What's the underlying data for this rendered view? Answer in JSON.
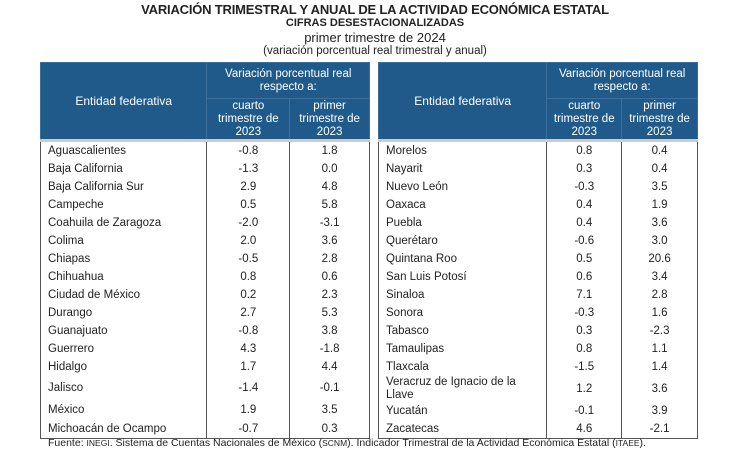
{
  "title": "VARIACIÓN TRIMESTRAL Y ANUAL DE LA ACTIVIDAD ECONÓMICA ESTATAL",
  "subtitle": "CIFRAS DESESTACIONALIZADAS",
  "period": "primer trimestre de 2024",
  "note": "(variación porcentual real trimestral y anual)",
  "headers": {
    "entity": "Entidad federativa",
    "group": "Variación porcentual real respecto a:",
    "col1": "cuarto trimestre de 2023",
    "col2": "primer trimestre de 2023"
  },
  "left_rows": [
    [
      "Aguascalientes",
      "-0.8",
      "1.8"
    ],
    [
      "Baja California",
      "-1.3",
      "0.0"
    ],
    [
      "Baja California Sur",
      "2.9",
      "4.8"
    ],
    [
      "Campeche",
      "0.5",
      "5.8"
    ],
    [
      "Coahuila de Zaragoza",
      "-2.0",
      "-3.1"
    ],
    [
      "Colima",
      "2.0",
      "3.6"
    ],
    [
      "Chiapas",
      "-0.5",
      "2.8"
    ],
    [
      "Chihuahua",
      "0.8",
      "0.6"
    ],
    [
      "Ciudad de México",
      "0.2",
      "2.3"
    ],
    [
      "Durango",
      "2.7",
      "5.3"
    ],
    [
      "Guanajuato",
      "-0.8",
      "3.8"
    ],
    [
      "Guerrero",
      "4.3",
      "-1.8"
    ],
    [
      "Hidalgo",
      "1.7",
      "4.4"
    ],
    [
      "Jalisco",
      "-1.4",
      "-0.1"
    ],
    [
      "México",
      "1.9",
      "3.5"
    ],
    [
      "Michoacán de Ocampo",
      "-0.7",
      "0.3"
    ]
  ],
  "right_rows": [
    [
      "Morelos",
      "0.8",
      "0.4"
    ],
    [
      "Nayarit",
      "0.3",
      "0.4"
    ],
    [
      "Nuevo León",
      "-0.3",
      "3.5"
    ],
    [
      "Oaxaca",
      "0.4",
      "1.9"
    ],
    [
      "Puebla",
      "0.4",
      "3.6"
    ],
    [
      "Querétaro",
      "-0.6",
      "3.0"
    ],
    [
      "Quintana Roo",
      "0.5",
      "20.6"
    ],
    [
      "San Luis Potosí",
      "0.6",
      "3.4"
    ],
    [
      "Sinaloa",
      "7.1",
      "2.8"
    ],
    [
      "Sonora",
      "-0.3",
      "1.6"
    ],
    [
      "Tabasco",
      "0.3",
      "-2.3"
    ],
    [
      "Tamaulipas",
      "0.8",
      "1.1"
    ],
    [
      "Tlaxcala",
      "-1.5",
      "1.4"
    ],
    [
      "Veracruz de Ignacio de la Llave",
      "1.2",
      "3.6"
    ],
    [
      "Yucatán",
      "-0.1",
      "3.9"
    ],
    [
      "Zacatecas",
      "4.6",
      "-2.1"
    ]
  ],
  "footer": {
    "prefix": "Fuente:",
    "inegi": "INEGI",
    "mid": ". Sistema de Cuentas Nacionales de México (",
    "scnm": "SCNM",
    "mid2": "). Indicador Trimestral de la Actividad Económica Estatal (",
    "itaee": "ITAEE",
    "end": ")."
  }
}
